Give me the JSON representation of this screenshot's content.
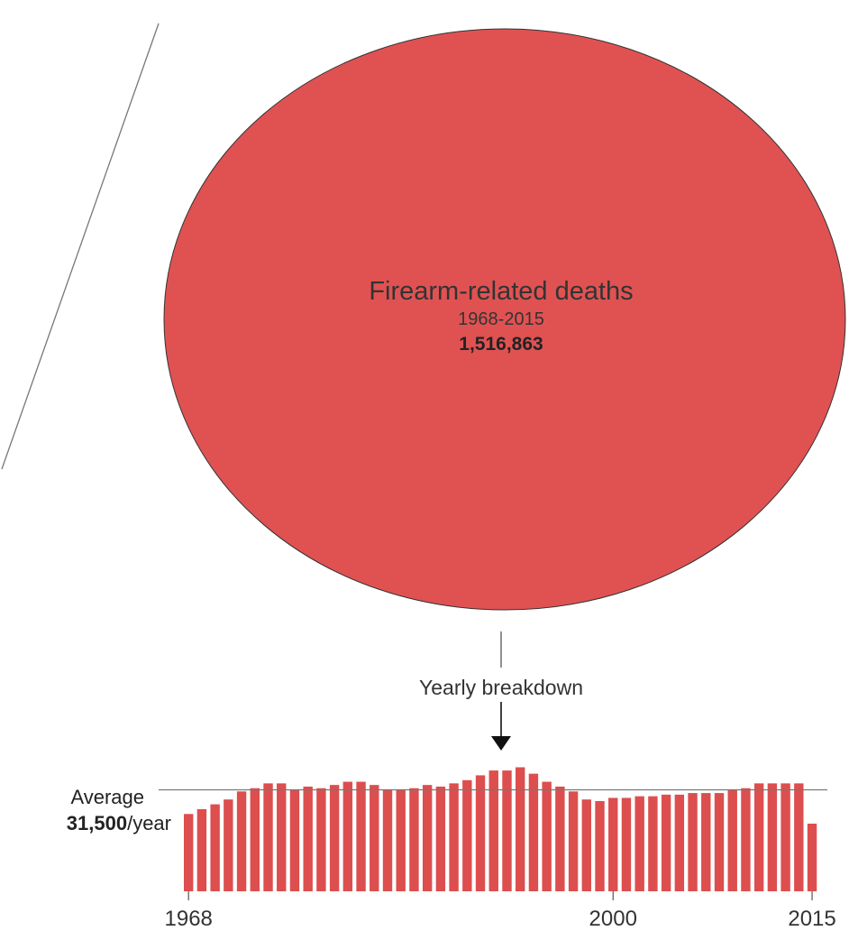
{
  "colors": {
    "circle_fill": "#e05252",
    "circle_stroke": "#333333",
    "bar_fill": "#dd4e4e",
    "line": "#777777",
    "text": "#222222",
    "arrow": "#111111"
  },
  "circle": {
    "title": "Firearm-related deaths",
    "period": "1968-2015",
    "total": "1,516,863"
  },
  "callout": {
    "label": "Yearly breakdown"
  },
  "average": {
    "label": "Average",
    "value": "31,500",
    "unit": "/year",
    "numeric": 31500
  },
  "chart_data": {
    "type": "bar",
    "title": "",
    "xlabel": "",
    "ylabel": "",
    "x_tick_labels": [
      "1968",
      "2000",
      "2015"
    ],
    "categories": [
      1968,
      1969,
      1970,
      1971,
      1972,
      1973,
      1974,
      1975,
      1976,
      1977,
      1978,
      1979,
      1980,
      1981,
      1982,
      1983,
      1984,
      1985,
      1986,
      1987,
      1988,
      1989,
      1990,
      1991,
      1992,
      1993,
      1994,
      1995,
      1996,
      1997,
      1998,
      1999,
      2000,
      2001,
      2002,
      2003,
      2004,
      2005,
      2006,
      2007,
      2008,
      2009,
      2010,
      2011,
      2012,
      2013,
      2014,
      2015
    ],
    "values": [
      24000,
      25500,
      27000,
      28500,
      31000,
      32000,
      33500,
      33500,
      31500,
      32500,
      32000,
      33000,
      34000,
      34000,
      33000,
      31500,
      31500,
      32000,
      33000,
      32500,
      33500,
      34500,
      36000,
      37500,
      37500,
      38500,
      36500,
      34000,
      32500,
      31000,
      28500,
      28000,
      29000,
      29000,
      29500,
      29500,
      30000,
      30000,
      30500,
      30500,
      30500,
      31500,
      32000,
      33500,
      33500,
      33500,
      33500,
      21000
    ],
    "ylim": [
      0,
      42000
    ],
    "reference_line": 31500,
    "grid": false,
    "legend": "none"
  }
}
